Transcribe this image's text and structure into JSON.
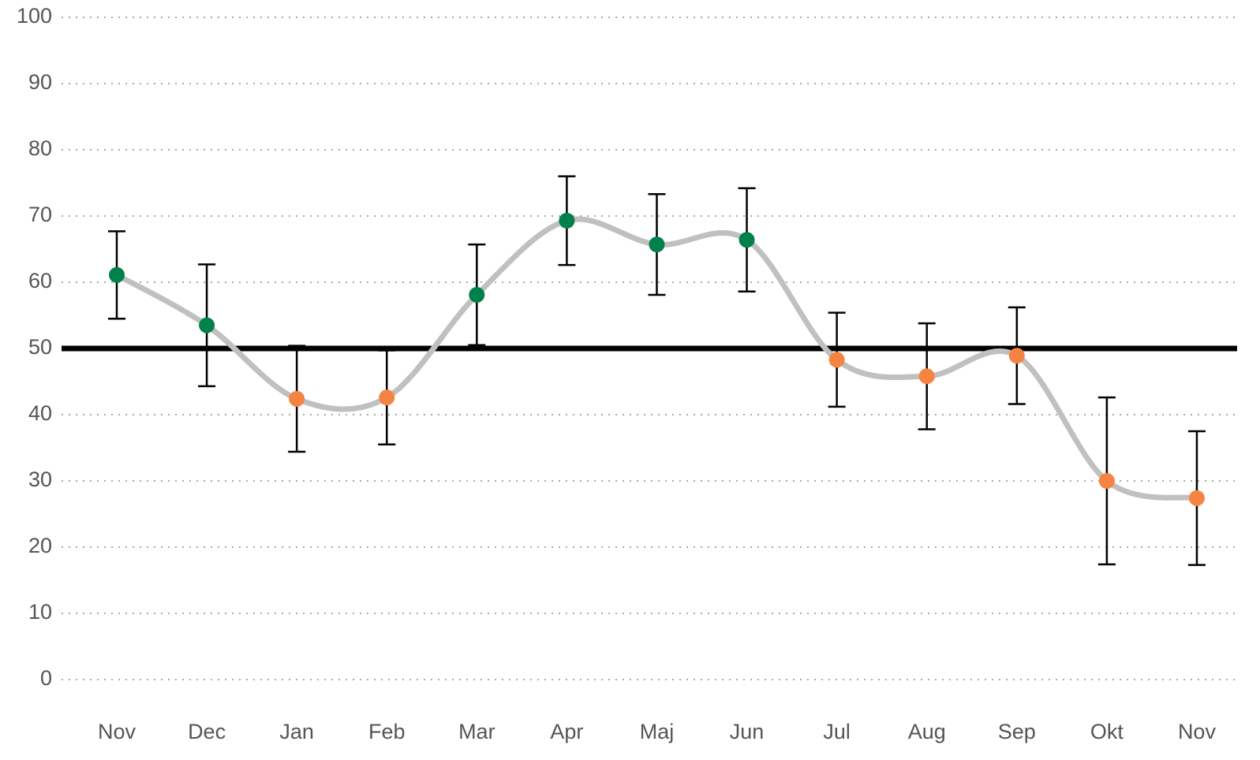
{
  "chart_data": {
    "type": "line",
    "categories": [
      "Nov",
      "Dec",
      "Jan",
      "Feb",
      "Mar",
      "Apr",
      "Maj",
      "Jun",
      "Jul",
      "Aug",
      "Sep",
      "Okt",
      "Nov"
    ],
    "values": [
      61.1,
      53.5,
      42.4,
      42.6,
      58.1,
      69.3,
      65.7,
      66.4,
      48.3,
      45.8,
      48.9,
      30,
      27.4
    ],
    "errors": [
      6.6,
      9.2,
      8,
      7.1,
      7.6,
      6.7,
      7.6,
      7.8,
      7.1,
      8,
      7.3,
      12.6,
      10.1
    ],
    "colors": [
      "#00814a",
      "#00814a",
      "#f58442",
      "#f58442",
      "#00814a",
      "#00814a",
      "#00814a",
      "#00814a",
      "#f58442",
      "#f58442",
      "#f58442",
      "#f58442",
      "#f58442"
    ],
    "line_color": "#c0c0c0",
    "reference_line": 50,
    "ylim": [
      0,
      100
    ],
    "yticks": [
      0,
      10,
      20,
      30,
      40,
      50,
      60,
      70,
      80,
      90,
      100
    ],
    "grid": true
  }
}
